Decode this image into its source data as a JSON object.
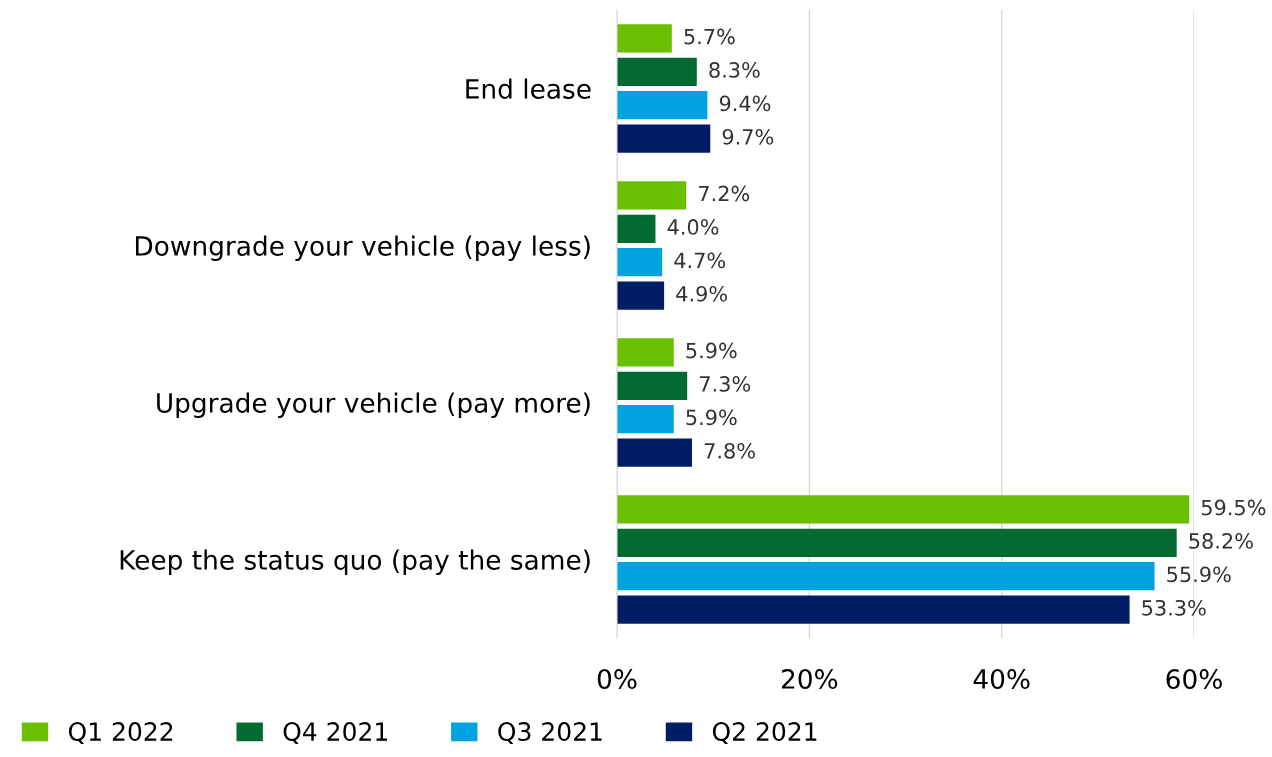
{
  "chart_data": {
    "type": "bar",
    "orientation": "horizontal",
    "categories": [
      "End lease",
      "Downgrade your vehicle (pay less)",
      "Upgrade your vehicle (pay more)",
      "Keep the status quo (pay the same)"
    ],
    "series": [
      {
        "name": "Q1 2022",
        "color": "#6abf00",
        "values": [
          5.7,
          7.2,
          5.9,
          59.5
        ],
        "value_labels": [
          "5.7%",
          "7.2%",
          "5.9%",
          "59.5%"
        ]
      },
      {
        "name": "Q4 2021",
        "color": "#006a30",
        "values": [
          8.3,
          4.0,
          7.3,
          58.2
        ],
        "value_labels": [
          "8.3%",
          "4.0%",
          "7.3%",
          "58.2%"
        ]
      },
      {
        "name": "Q3 2021",
        "color": "#00a3e0",
        "values": [
          9.4,
          4.7,
          5.9,
          55.9
        ],
        "value_labels": [
          "9.4%",
          "4.7%",
          "5.9%",
          "55.9%"
        ]
      },
      {
        "name": "Q2 2021",
        "color": "#001c64",
        "values": [
          9.7,
          4.9,
          7.8,
          53.3
        ],
        "value_labels": [
          "9.7%",
          "4.9%",
          "7.8%",
          "53.3%"
        ]
      }
    ],
    "xlim": [
      0,
      60
    ],
    "xticks": [
      {
        "value": 0,
        "label": "0%"
      },
      {
        "value": 20,
        "label": "20%"
      },
      {
        "value": 40,
        "label": "40%"
      },
      {
        "value": 60,
        "label": "60%"
      }
    ],
    "grid": "x",
    "legend": "bottom"
  }
}
